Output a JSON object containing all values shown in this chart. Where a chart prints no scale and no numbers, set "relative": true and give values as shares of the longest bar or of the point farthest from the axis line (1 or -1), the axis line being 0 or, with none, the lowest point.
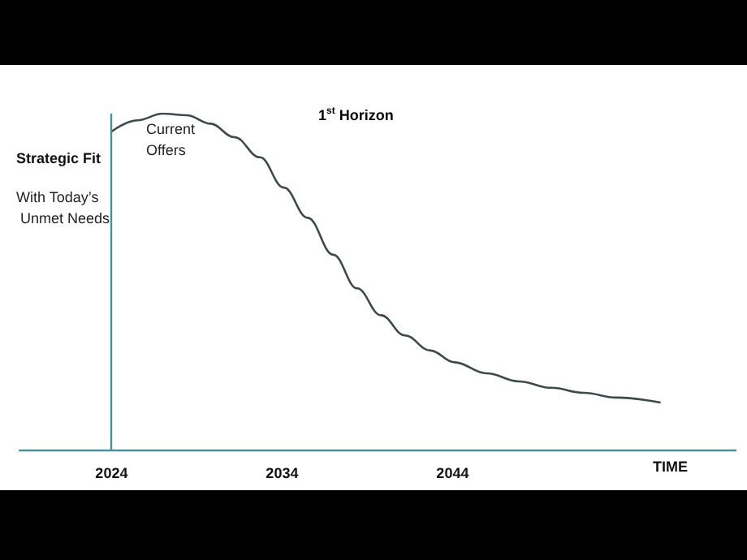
{
  "chart_data": {
    "type": "line",
    "relative": true,
    "ylabel": "Strategic Fit",
    "xlabel": "TIME",
    "x": [
      2024,
      2025.5,
      2027,
      2028.4,
      2029.8,
      2031.2,
      2032.7,
      2034.1,
      2035.5,
      2037,
      2038.4,
      2039.8,
      2041.2,
      2042.7,
      2044.1,
      2046,
      2047.9,
      2049.8,
      2051.7,
      2053.6,
      2056.2
    ],
    "series": [
      {
        "color": "#3d4a4c",
        "values": [
          0.947,
          0.98,
          1,
          0.995,
          0.97,
          0.93,
          0.87,
          0.78,
          0.69,
          0.58,
          0.48,
          0.4,
          0.34,
          0.295,
          0.26,
          0.227,
          0.203,
          0.184,
          0.169,
          0.155,
          0.14
        ]
      }
    ],
    "xlim": [
      2018.6,
      2060.6
    ],
    "xticks": [
      2024,
      2034,
      2044
    ],
    "ref_lines": [
      {
        "axis": "x",
        "value": 2024,
        "color": "#4a8f9a"
      }
    ],
    "annotations": [
      "With Today’s Unmet Needs",
      "Current Offers",
      "1$^{st}$ Horizon"
    ],
    "grid": false,
    "marker": "none",
    "line_style": "solid"
  }
}
